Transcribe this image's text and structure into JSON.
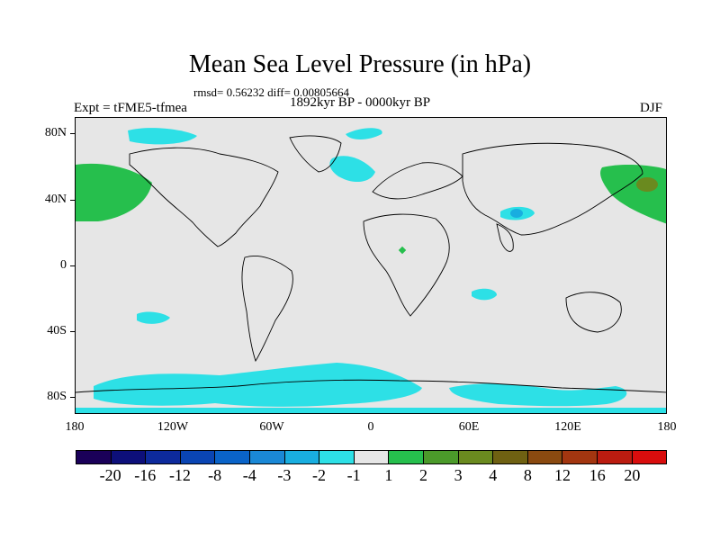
{
  "title": "Mean Sea Level Pressure (in hPa)",
  "stats": "rmsd= 0.56232 diff= 0.00805664",
  "period": "1892kyr BP - 0000kyr BP",
  "experiment": "Expt = tFME5-tfmea",
  "season": "DJF",
  "y_labels": [
    "80N",
    "40N",
    "0",
    "40S",
    "80S"
  ],
  "x_labels": [
    "180",
    "120W",
    "60W",
    "0",
    "60E",
    "120E",
    "180"
  ],
  "colorbar": {
    "colors": [
      "#1a0059",
      "#0d0f7a",
      "#0d2a9c",
      "#0a45b3",
      "#0a63c8",
      "#1a88d6",
      "#19aee0",
      "#2de0e6",
      "#e6e6e6",
      "#26bf4d",
      "#4b9a2a",
      "#6a8a1f",
      "#6f6112",
      "#8a4a10",
      "#a33610",
      "#bb1c10",
      "#d90d0d"
    ],
    "labels": [
      "-20",
      "-16",
      "-12",
      "-8",
      "-4",
      "-3",
      "-2",
      "-1",
      "1",
      "2",
      "3",
      "4",
      "8",
      "12",
      "16",
      "20"
    ]
  },
  "colors": {
    "background": "#e6e6e6",
    "neg_small": "#2de0e6",
    "neg_medium": "#19aee0",
    "pos_small": "#26bf4d",
    "pos_medium": "#6a8a1f",
    "coast": "#000000"
  }
}
